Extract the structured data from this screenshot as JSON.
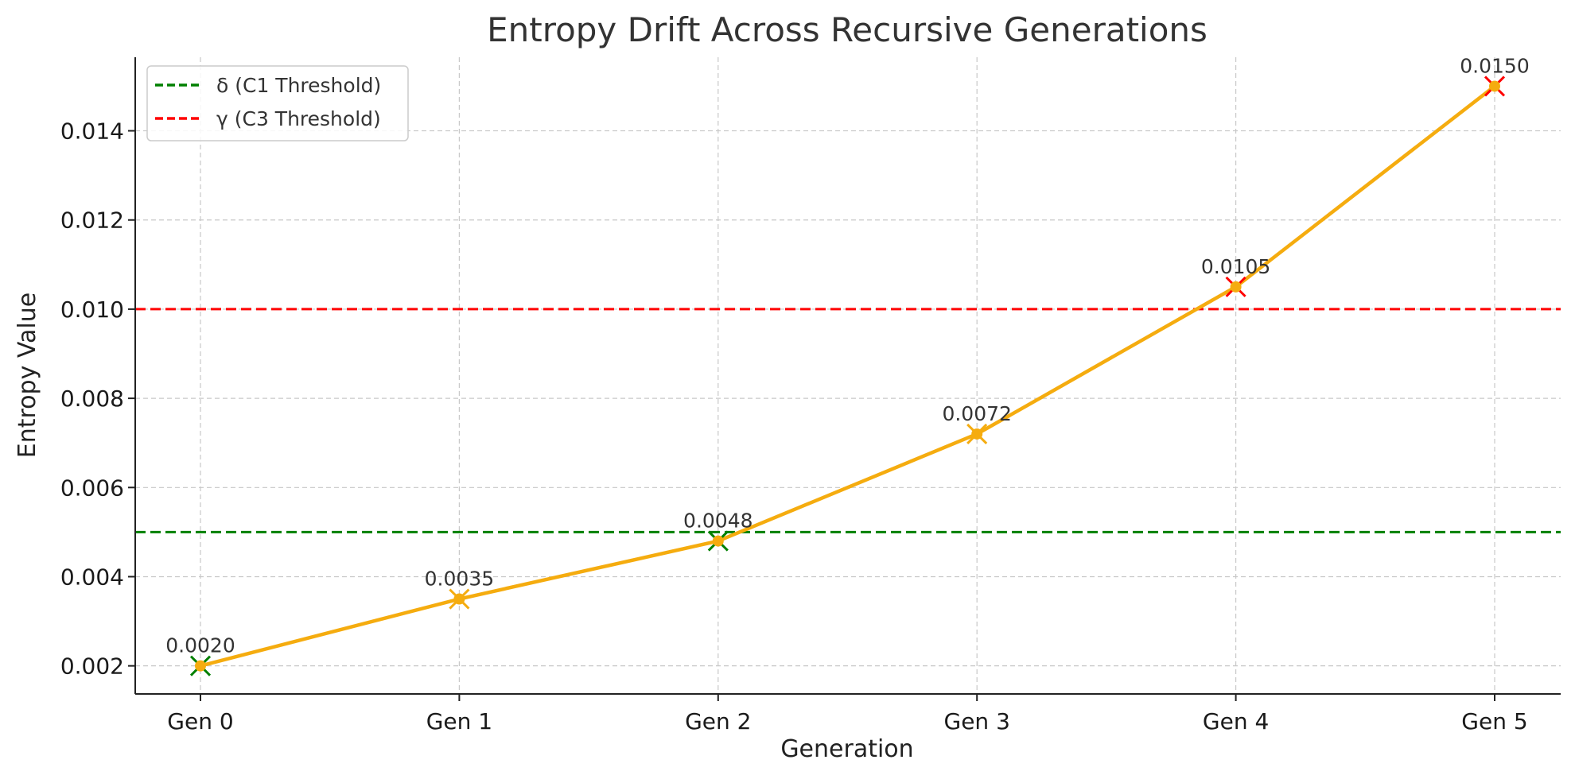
{
  "chart_data": {
    "type": "line",
    "title": "Entropy Drift Across Recursive Generations",
    "xlabel": "Generation",
    "ylabel": "Entropy Value",
    "categories": [
      "Gen 0",
      "Gen 1",
      "Gen 2",
      "Gen 3",
      "Gen 4",
      "Gen 5"
    ],
    "series": [
      {
        "values": [
          0.002,
          0.0035,
          0.0048,
          0.0072,
          0.0105,
          0.015
        ],
        "data_labels": [
          "0.0020",
          "0.0035",
          "0.0048",
          "0.0072",
          "0.0105",
          "0.0150"
        ],
        "color": "#f5ac0f",
        "marker_colors": [
          "#008000",
          "#f5ac0f",
          "#008000",
          "#f5ac0f",
          "#ff0000",
          "#ff0000"
        ]
      }
    ],
    "reference_lines": [
      {
        "name": "δ (C1 Threshold)",
        "value": 0.005,
        "color": "#008000"
      },
      {
        "name": "γ (C3 Threshold)",
        "value": 0.01,
        "color": "#ff0000"
      }
    ],
    "ylim": [
      0.00137,
      0.01565
    ],
    "yticks": [
      0.002,
      0.004,
      0.006,
      0.008,
      0.01,
      0.012,
      0.014
    ],
    "ytick_labels": [
      "0.002",
      "0.004",
      "0.006",
      "0.008",
      "0.010",
      "0.012",
      "0.014"
    ],
    "grid": true,
    "legend_position": "top-left"
  }
}
